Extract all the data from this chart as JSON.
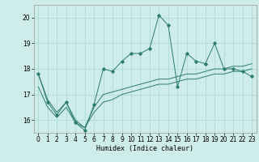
{
  "xlabel": "Humidex (Indice chaleur)",
  "ylabel": "",
  "background_color": "#ceecea",
  "line_color": "#2e7d6e",
  "grid_color": "#a8d8d0",
  "xlim": [
    -0.5,
    23.5
  ],
  "ylim": [
    15.5,
    20.5
  ],
  "yticks": [
    16,
    17,
    18,
    19,
    20
  ],
  "xticks": [
    0,
    1,
    2,
    3,
    4,
    5,
    6,
    7,
    8,
    9,
    10,
    11,
    12,
    13,
    14,
    15,
    16,
    17,
    18,
    19,
    20,
    21,
    22,
    23
  ],
  "series1_x": [
    0,
    1,
    2,
    3,
    4,
    5,
    6,
    7,
    8,
    9,
    10,
    11,
    12,
    13,
    14,
    15,
    16,
    17,
    18,
    19,
    20,
    21,
    22,
    23
  ],
  "series1_y": [
    17.8,
    16.7,
    16.2,
    16.7,
    15.9,
    15.6,
    16.6,
    18.0,
    17.9,
    18.3,
    18.6,
    18.6,
    18.8,
    20.1,
    19.7,
    17.3,
    18.6,
    18.3,
    18.2,
    19.0,
    18.0,
    18.0,
    17.9,
    17.7
  ],
  "series2_x": [
    0,
    1,
    2,
    3,
    4,
    5,
    6,
    7,
    8,
    9,
    10,
    11,
    12,
    13,
    14,
    15,
    16,
    17,
    18,
    19,
    20,
    21,
    22,
    23
  ],
  "series2_y": [
    17.8,
    16.8,
    16.3,
    16.7,
    16.0,
    15.7,
    16.5,
    17.0,
    17.1,
    17.2,
    17.3,
    17.4,
    17.5,
    17.6,
    17.6,
    17.7,
    17.8,
    17.8,
    17.9,
    18.0,
    18.0,
    18.1,
    18.1,
    18.2
  ],
  "series3_x": [
    0,
    1,
    2,
    3,
    4,
    5,
    6,
    7,
    8,
    9,
    10,
    11,
    12,
    13,
    14,
    15,
    16,
    17,
    18,
    19,
    20,
    21,
    22,
    23
  ],
  "series3_y": [
    17.3,
    16.5,
    16.1,
    16.5,
    15.9,
    15.7,
    16.3,
    16.7,
    16.8,
    17.0,
    17.1,
    17.2,
    17.3,
    17.4,
    17.4,
    17.5,
    17.6,
    17.6,
    17.7,
    17.8,
    17.8,
    17.9,
    17.9,
    18.0
  ],
  "title_fontsize": 7,
  "axis_fontsize": 6,
  "tick_fontsize": 5.5
}
